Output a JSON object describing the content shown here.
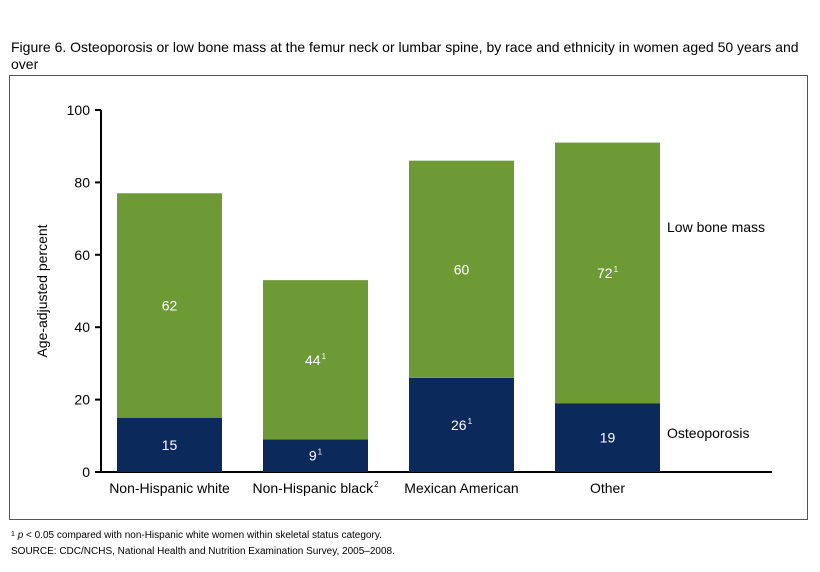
{
  "title": "Figure 6. Osteoporosis or low bone mass at the femur neck or lumbar spine, by race and ethnicity in women aged 50 years and over",
  "footnote": {
    "marker": "1",
    "p": "p",
    "text": " < 0.05 compared with non-Hispanic white women within skeletal status category."
  },
  "source": "SOURCE: CDC/NCHS, National Health and Nutrition Examination Survey, 2005–2008.",
  "colors": {
    "osteoporosis": "#0b2a5b",
    "low_bone_mass": "#6e9a35",
    "axis": "#000000"
  },
  "chart_data": {
    "type": "bar",
    "stacked": true,
    "categories": [
      {
        "label": "Non-Hispanic white",
        "sup": ""
      },
      {
        "label": "Non-Hispanic black",
        "sup": "2"
      },
      {
        "label": "Mexican American",
        "sup": ""
      },
      {
        "label": "Other",
        "sup": ""
      }
    ],
    "series": [
      {
        "name": "Osteoporosis",
        "values": [
          15,
          9,
          26,
          19
        ],
        "value_sup": [
          "",
          "1",
          "1",
          ""
        ]
      },
      {
        "name": "Low bone mass",
        "values": [
          62,
          44,
          60,
          72
        ],
        "value_sup": [
          "",
          "1",
          "",
          "1"
        ]
      }
    ],
    "ylabel": "Age-adjusted percent",
    "xlabel": "",
    "ylim": [
      0,
      100
    ],
    "yticks": [
      0,
      20,
      40,
      60,
      80,
      100
    ],
    "grid": false,
    "legend": "right, beside bars"
  }
}
